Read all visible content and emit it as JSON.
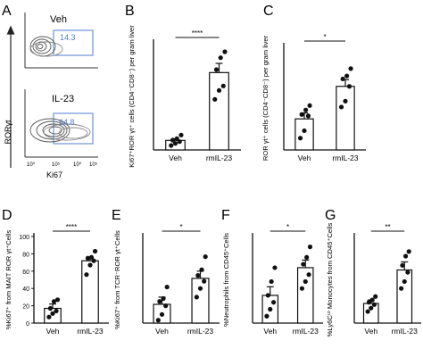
{
  "panel_letters": [
    "A",
    "B",
    "C",
    "D",
    "E",
    "F",
    "G"
  ],
  "flow": {
    "ylabel": "RORγt",
    "xlabel": "Ki67",
    "plots": [
      {
        "label": "Veh",
        "gate_value": "14.3"
      },
      {
        "label": "IL-23",
        "gate_value": "64.8"
      }
    ],
    "tick_labels": [
      "10⁰",
      "10⁵",
      "10⁰",
      "10⁵"
    ]
  },
  "chart_data": [
    {
      "panel": "B",
      "type": "bar",
      "ylabel": "Ki67⁺ROR γt⁺ cells (CD4⁻CD8⁻) per gram liver",
      "categories": [
        "Veh",
        "rmIL-23"
      ],
      "values": [
        320,
        2600
      ],
      "errors": [
        60,
        310
      ],
      "points": [
        [
          150,
          220,
          280,
          330,
          380,
          500
        ],
        [
          1700,
          2000,
          2150,
          2700,
          3100,
          3300
        ]
      ],
      "significance": "****",
      "yaxis_ticks": [],
      "ylim": [
        0,
        3600
      ]
    },
    {
      "panel": "C",
      "type": "bar",
      "ylabel": "ROR γt⁺ cells (CD4⁻CD8⁻) per gram liver",
      "categories": [
        "Veh",
        "rmIL-23"
      ],
      "values": [
        2100,
        4300
      ],
      "errors": [
        400,
        450
      ],
      "points": [
        [
          800,
          1300,
          2300,
          2400,
          2700,
          3000
        ],
        [
          2900,
          3300,
          4300,
          4800,
          5000,
          5500
        ]
      ],
      "significance": "*",
      "yaxis_ticks": [],
      "ylim": [
        0,
        7000
      ]
    },
    {
      "panel": "D",
      "type": "bar",
      "ylabel": "%Ki67⁺ from MAIT ROR γt⁺Cells",
      "categories": [
        "Veh",
        "rmIL-23"
      ],
      "values": [
        17,
        72
      ],
      "errors": [
        5,
        4
      ],
      "points": [
        [
          7,
          11,
          14,
          17,
          25,
          27
        ],
        [
          56,
          67,
          72,
          75,
          76,
          83
        ]
      ],
      "significance": "****",
      "yaxis_ticks": [
        0,
        20,
        40,
        60,
        80,
        100
      ],
      "ylim": [
        0,
        100
      ]
    },
    {
      "panel": "E",
      "type": "bar",
      "ylabel": "%Ki67⁺ from TCR⁻ROR γt⁺Cells",
      "categories": [
        "Veh",
        "rmIL-23"
      ],
      "values": [
        13,
        31
      ],
      "errors": [
        5,
        5
      ],
      "points": [
        [
          2,
          6,
          12,
          15,
          17,
          25
        ],
        [
          18,
          24,
          29,
          33,
          37,
          46
        ]
      ],
      "significance": "*",
      "yaxis_ticks": [],
      "ylim": [
        0,
        60
      ]
    },
    {
      "panel": "F",
      "type": "bar",
      "ylabel": "%Neutrophils from CD45⁺Cells",
      "categories": [
        "Veh",
        "rmIL-23"
      ],
      "values": [
        8,
        16
      ],
      "errors": [
        2.5,
        2.2
      ],
      "points": [
        [
          2,
          4,
          6,
          8,
          12,
          16
        ],
        [
          10,
          12,
          14,
          17,
          19,
          22
        ]
      ],
      "significance": "*",
      "yaxis_ticks": [],
      "ylim": [
        0,
        25
      ]
    },
    {
      "panel": "G",
      "type": "bar",
      "ylabel": "%Ly6Cᶫᵒ Monocytes from CD45⁺Cells",
      "categories": [
        "Veh",
        "rmIL-23"
      ],
      "values": [
        17,
        46
      ],
      "errors": [
        3,
        7
      ],
      "points": [
        [
          10,
          13,
          16,
          18,
          20,
          23
        ],
        [
          30,
          36,
          44,
          50,
          58,
          62
        ]
      ],
      "significance": "**",
      "yaxis_ticks": [],
      "ylim": [
        0,
        75
      ]
    }
  ]
}
